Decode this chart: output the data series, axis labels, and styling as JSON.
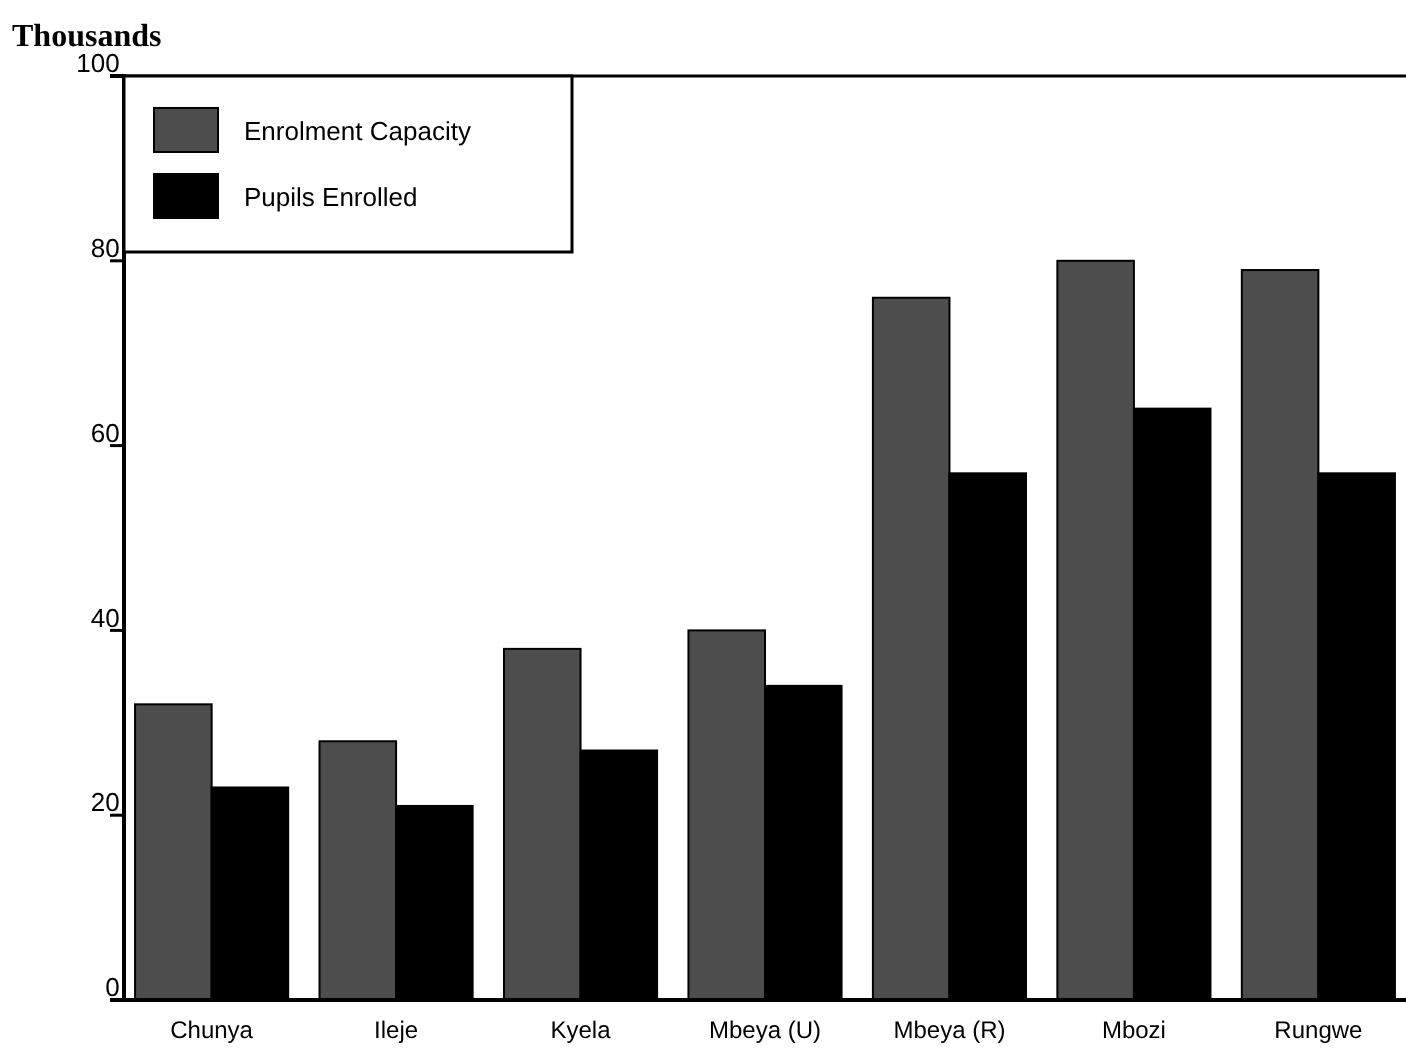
{
  "chart_data": {
    "type": "bar",
    "ylabel": "Thousands",
    "categories": [
      "Chunya",
      "Ileje",
      "Kyela",
      "Mbeya (U)",
      "Mbeya (R)",
      "Mbozi",
      "Rungwe"
    ],
    "series": [
      {
        "name": "Enrolment Capacity",
        "color": "#4d4d4d",
        "values": [
          32,
          28,
          38,
          40,
          76,
          80,
          79
        ]
      },
      {
        "name": "Pupils Enrolled",
        "color": "#000000",
        "values": [
          23,
          21,
          27,
          34,
          57,
          64,
          57
        ]
      }
    ],
    "ylim": [
      0,
      100
    ],
    "yticks": [
      0,
      20,
      40,
      60,
      80,
      100
    ],
    "legend": "top left"
  }
}
